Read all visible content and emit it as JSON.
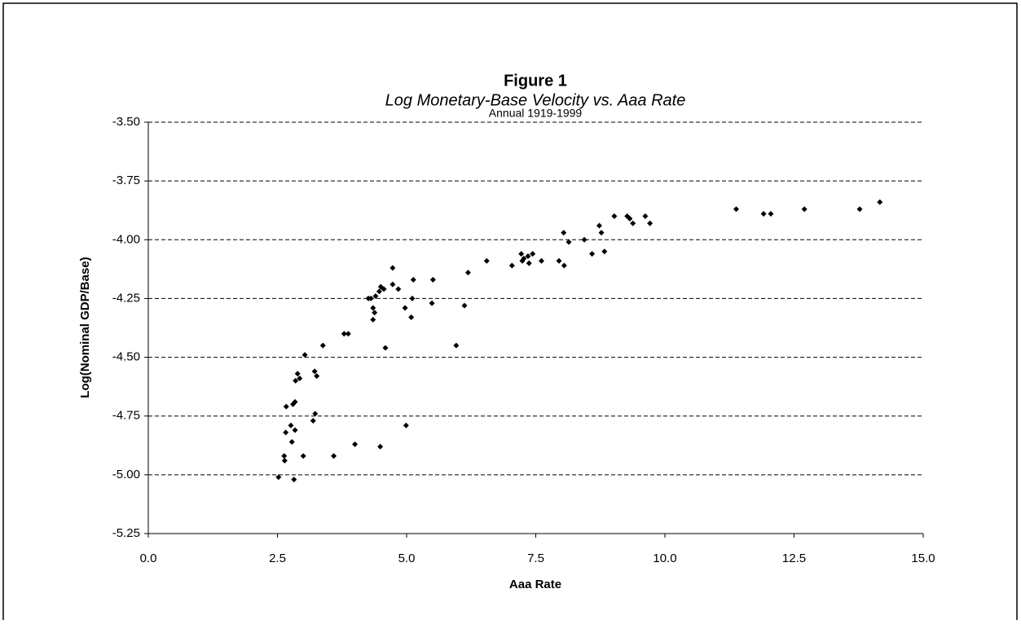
{
  "chart_data": {
    "type": "scatter",
    "title": "Figure 1",
    "subtitle": "Log Monetary-Base Velocity vs. Aaa Rate",
    "annotation": "Annual 1919-1999",
    "x_label": "Aaa Rate",
    "y_label": "Log(Nominal GDP/Base)",
    "color": "#000000",
    "grid": true,
    "xlim": [
      0,
      15
    ],
    "ylim": [
      -5.25,
      -3.5
    ],
    "xticks": [
      {
        "value": 0,
        "label": "0.0"
      },
      {
        "value": 2.5,
        "label": "2.5"
      },
      {
        "value": 5,
        "label": "5.0"
      },
      {
        "value": 7.5,
        "label": "7.5"
      },
      {
        "value": 10,
        "label": "10.0"
      },
      {
        "value": 12.5,
        "label": "12.5"
      },
      {
        "value": 15,
        "label": "15.0"
      }
    ],
    "yticks": [
      {
        "value": -5.25,
        "label": "-5.25"
      },
      {
        "value": -5,
        "label": "-5.00"
      },
      {
        "value": -4.75,
        "label": "-4.75"
      },
      {
        "value": -4.5,
        "label": "-4.50"
      },
      {
        "value": -4.25,
        "label": "-4.25"
      },
      {
        "value": -4,
        "label": "-4.00"
      },
      {
        "value": -3.75,
        "label": "-3.75"
      },
      {
        "value": -3.5,
        "label": "-3.50"
      }
    ],
    "x": [
      14.16,
      13.77,
      12.7,
      12.05,
      11.91,
      11.38,
      9.02,
      9.27,
      9.32,
      9.38,
      9.62,
      9.71,
      8.73,
      8.77,
      8.83,
      8.59,
      8.44,
      8.14,
      8.04,
      8.05,
      7.95,
      7.61,
      7.44,
      7.37,
      7.35,
      7.27,
      7.22,
      7.24,
      7.04,
      6.55,
      6.19,
      6.12,
      5.96,
      5.51,
      5.49,
      5.13,
      5.11,
      5.09,
      4.97,
      4.99,
      4.84,
      4.73,
      4.73,
      4.59,
      4.56,
      4.5,
      4.47,
      4.49,
      4.4,
      4.38,
      4.35,
      4.35,
      4.31,
      4.26,
      4.0,
      3.87,
      3.79,
      3.59,
      3.38,
      3.26,
      3.22,
      3.23,
      3.19,
      3.03,
      3.0,
      2.93,
      2.89,
      2.85,
      2.84,
      2.8,
      2.76,
      2.78,
      2.84,
      2.82,
      2.67,
      2.66,
      2.63,
      2.64,
      2.52
    ],
    "y": [
      -3.84,
      -3.87,
      -3.87,
      -3.89,
      -3.89,
      -3.87,
      -3.9,
      -3.9,
      -3.91,
      -3.93,
      -3.9,
      -3.93,
      -3.94,
      -3.97,
      -4.05,
      -4.06,
      -4.0,
      -4.01,
      -3.97,
      -4.11,
      -4.09,
      -4.09,
      -4.06,
      -4.1,
      -4.07,
      -4.08,
      -4.06,
      -4.09,
      -4.11,
      -4.09,
      -4.14,
      -4.28,
      -4.45,
      -4.17,
      -4.27,
      -4.17,
      -4.25,
      -4.33,
      -4.29,
      -4.79,
      -4.21,
      -4.12,
      -4.19,
      -4.46,
      -4.21,
      -4.2,
      -4.22,
      -4.88,
      -4.24,
      -4.31,
      -4.29,
      -4.34,
      -4.25,
      -4.25,
      -4.87,
      -4.4,
      -4.4,
      -4.92,
      -4.45,
      -4.58,
      -4.56,
      -4.74,
      -4.77,
      -4.49,
      -4.92,
      -4.59,
      -4.57,
      -4.6,
      -4.69,
      -4.7,
      -4.79,
      -4.86,
      -4.81,
      -5.02,
      -4.71,
      -4.82,
      -4.92,
      -4.94,
      -5.01
    ]
  }
}
